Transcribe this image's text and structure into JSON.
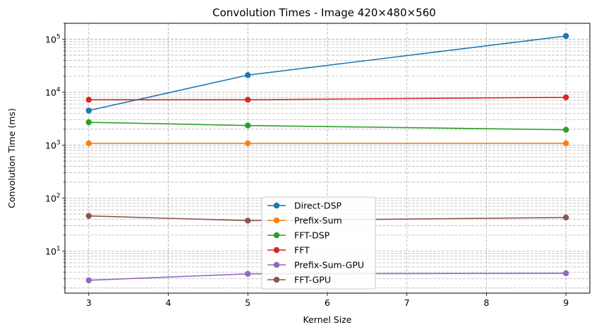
{
  "chart_data": {
    "type": "line",
    "title": "Convolution Times - Image 420×480×560",
    "xlabel": "Kernel Size",
    "ylabel": "Convolution Time (ms)",
    "x": [
      3,
      5,
      9
    ],
    "xlim": [
      2.7,
      9.3
    ],
    "ylim": [
      1.6,
      200000
    ],
    "yscale": "log",
    "xticks": [
      "3",
      "4",
      "5",
      "6",
      "7",
      "8",
      "9"
    ],
    "yticks": [
      {
        "base": "10",
        "exp": "1"
      },
      {
        "base": "10",
        "exp": "2"
      },
      {
        "base": "10",
        "exp": "3"
      },
      {
        "base": "10",
        "exp": "4"
      },
      {
        "base": "10",
        "exp": "5"
      }
    ],
    "grid": true,
    "legend_position": "lower-center",
    "series": [
      {
        "name": "Direct-DSP",
        "color": "#1f77b4",
        "values": [
          4500,
          21000,
          115000
        ]
      },
      {
        "name": "Prefix-Sum",
        "color": "#ff7f0e",
        "values": [
          1080,
          1080,
          1080
        ]
      },
      {
        "name": "FFT-DSP",
        "color": "#2ca02c",
        "values": [
          2700,
          2350,
          1950
        ]
      },
      {
        "name": "FFT",
        "color": "#d62728",
        "values": [
          7200,
          7200,
          8000
        ]
      },
      {
        "name": "Prefix-Sum-GPU",
        "color": "#9467bd",
        "values": [
          2.8,
          3.7,
          3.8
        ]
      },
      {
        "name": "FFT-GPU",
        "color": "#8c564b",
        "values": [
          46,
          37.5,
          43
        ]
      }
    ]
  }
}
